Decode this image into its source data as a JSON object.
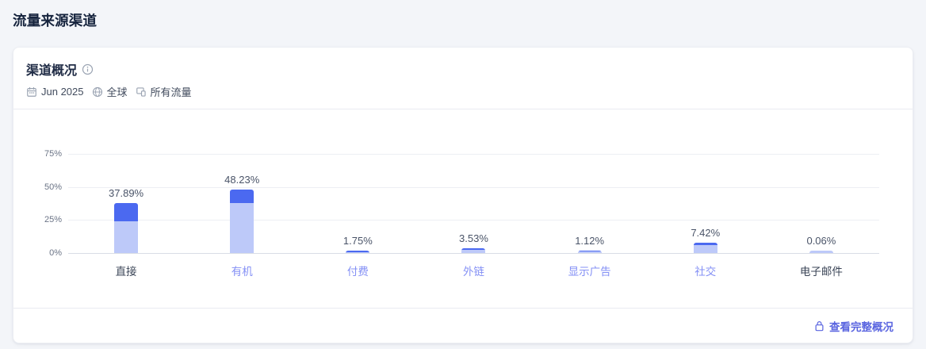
{
  "page": {
    "title": "流量来源渠道"
  },
  "card": {
    "title": "渠道概况",
    "filters": [
      {
        "icon": "calendar-icon",
        "label": "Jun 2025"
      },
      {
        "icon": "globe-icon",
        "label": "全球"
      },
      {
        "icon": "traffic-type-icon",
        "label": "所有流量"
      }
    ],
    "footer": {
      "link_label": "查看完整概况"
    }
  },
  "colors": {
    "bar_bottom": "#bdc9f9",
    "bar_top": "#4b69f0",
    "category_link": "#8490f5",
    "category_plain": "#3b4557",
    "footer_link": "#5a65e0"
  },
  "chart_data": {
    "type": "bar",
    "stacked": true,
    "title": "渠道概况",
    "categories": [
      "直接",
      "有机",
      "付费",
      "外链",
      "显示广告",
      "社交",
      "电子邮件"
    ],
    "totals": [
      37.89,
      48.23,
      1.75,
      3.53,
      1.12,
      7.42,
      0.06
    ],
    "value_labels": [
      "37.89%",
      "48.23%",
      "1.75%",
      "3.53%",
      "1.12%",
      "7.42%",
      "0.06%"
    ],
    "series": [
      {
        "name": "segment-bottom",
        "color": "#bdc9f9",
        "values": [
          24.0,
          38.0,
          0.6,
          2.3,
          0.5,
          5.8,
          0.06
        ]
      },
      {
        "name": "segment-top",
        "color": "#4b69f0",
        "values": [
          13.89,
          10.23,
          1.15,
          1.23,
          0.62,
          1.62,
          0
        ]
      }
    ],
    "category_is_link": [
      false,
      true,
      true,
      true,
      true,
      true,
      false
    ],
    "yticks": [
      {
        "label": "75%",
        "value": 75
      },
      {
        "label": "50%",
        "value": 50
      },
      {
        "label": "25%",
        "value": 25
      },
      {
        "label": "0%",
        "value": 0
      }
    ],
    "ylim": [
      0,
      75
    ],
    "xlabel": "",
    "ylabel": "",
    "grid": true,
    "legend": "none"
  }
}
